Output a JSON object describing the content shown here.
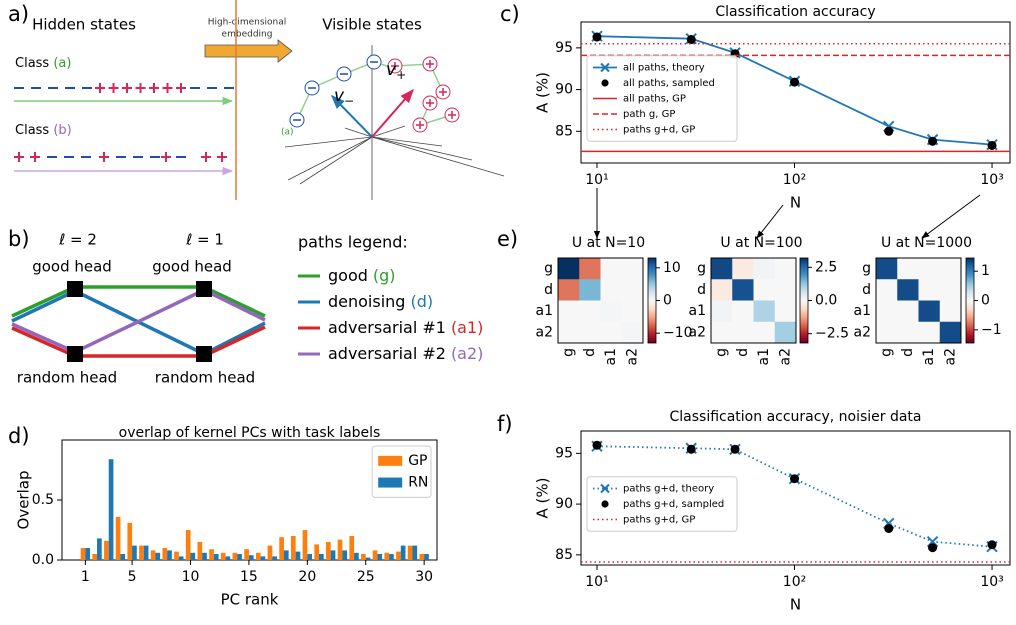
{
  "diagram_a": {
    "label": "a)",
    "hidden_title": "Hidden states",
    "embedding": [
      "High-dimensional",
      "embedding"
    ],
    "visible_title": "Visible states",
    "class_a": {
      "text": "Class",
      "tag": "(a)"
    },
    "class_b": {
      "text": "Class",
      "tag": "(b)"
    },
    "v_minus": {
      "symbol": "v",
      "sub": "−"
    },
    "v_plus": {
      "symbol": "v",
      "sub": "+"
    },
    "cluster_tag": "(a)"
  },
  "diagram_b": {
    "label": "b)",
    "layers": [
      "ℓ = 2",
      "ℓ = 1"
    ],
    "top_nodes": [
      "good head",
      "good head"
    ],
    "bottom_nodes": [
      "random head",
      "random head"
    ],
    "legend_title": "paths legend:",
    "paths": [
      {
        "name": "good",
        "tag": "(g)",
        "color": "#2ca02c"
      },
      {
        "name": "denoising",
        "tag": "(d)",
        "color": "#1f77b4"
      },
      {
        "name": "adversarial #1",
        "tag": "(a1)",
        "color": "#d62728"
      },
      {
        "name": "adversarial #2",
        "tag": "(a2)",
        "color": "#9467bd"
      }
    ]
  },
  "chart_data": [
    {
      "type": "line",
      "label": "c)",
      "title": "Classification accuracy",
      "xlabel": "N",
      "ylabel": "A (%)",
      "log_x": true,
      "x": [
        10,
        30,
        50,
        100,
        300,
        500,
        1000
      ],
      "xlim": [
        8.3,
        1233
      ],
      "xticks": [
        {
          "value": 10,
          "label": "10¹"
        },
        {
          "value": 100,
          "label": "10²"
        },
        {
          "value": 1000,
          "label": "10³"
        }
      ],
      "ylim": [
        81.2,
        98.1
      ],
      "yticks": [
        85,
        90,
        95
      ],
      "legend": "center left",
      "series": [
        {
          "name": "all paths, theory",
          "color": "#1f77b4",
          "marker": "x",
          "linestyle": "solid",
          "values": [
            96.4,
            96.1,
            94.4,
            91.0,
            85.6,
            84.0,
            83.4
          ]
        },
        {
          "name": "all paths, sampled",
          "color": "#000000",
          "marker": "o",
          "linestyle": "none",
          "values": [
            96.3,
            96.0,
            94.3,
            90.9,
            85.0,
            83.8,
            83.3
          ]
        }
      ],
      "hlines": [
        {
          "name": "all paths, GP",
          "color": "#d62728",
          "linestyle": "solid",
          "value": 82.6
        },
        {
          "name": "path g, GP",
          "color": "#d62728",
          "linestyle": "dashed",
          "value": 94.1
        },
        {
          "name": "paths g+d, GP",
          "color": "#d62728",
          "linestyle": "dotted",
          "value": 95.5
        }
      ]
    },
    {
      "type": "bar",
      "label": "d)",
      "title": "overlap of kernel PCs with task labels",
      "xlabel": "PC rank",
      "ylabel": "Overlap",
      "x": [
        1,
        2,
        3,
        4,
        5,
        6,
        7,
        8,
        9,
        10,
        11,
        12,
        13,
        14,
        15,
        16,
        17,
        18,
        19,
        20,
        21,
        22,
        23,
        24,
        25,
        26,
        27,
        28,
        29,
        30
      ],
      "xlim": [
        -1,
        31.1
      ],
      "xticks": [
        1,
        5,
        10,
        15,
        20,
        25,
        30
      ],
      "ylim": [
        0,
        1.0
      ],
      "yticks": [
        {
          "value": 0,
          "label": "0.0"
        },
        0.5
      ],
      "legend": "upper right",
      "series": [
        {
          "name": "GP",
          "color": "#ff7f0e",
          "values": [
            0.1,
            0.05,
            0.16,
            0.36,
            0.31,
            0.12,
            0.08,
            0.1,
            0.07,
            0.25,
            0.15,
            0.09,
            0.06,
            0.06,
            0.09,
            0.06,
            0.12,
            0.19,
            0.2,
            0.25,
            0.13,
            0.15,
            0.17,
            0.2,
            0.05,
            0.08,
            0.06,
            0.07,
            0.12,
            0.05
          ]
        },
        {
          "name": "RN",
          "color": "#1f77b4",
          "values": [
            0.1,
            0.18,
            0.84,
            0.05,
            0.12,
            0.12,
            0.06,
            0.08,
            0.03,
            0.06,
            0.06,
            0.05,
            0.03,
            0.05,
            0.04,
            0.03,
            0.03,
            0.08,
            0.07,
            0.05,
            0.05,
            0.08,
            0.08,
            0.06,
            0.02,
            0.05,
            0.05,
            0.12,
            0.12,
            0.05
          ]
        }
      ]
    },
    {
      "type": "heatmap",
      "label": "e)",
      "title": "U at N=10",
      "rows": [
        "g",
        "d",
        "a1",
        "a2"
      ],
      "cols": [
        "g",
        "d",
        "a1",
        "a2"
      ],
      "label_colors": [
        "#2ca02c",
        "#1f77b4",
        "#d62728",
        "#9467bd"
      ],
      "colormap": "RdBu",
      "values": [
        [
          13,
          -7,
          0,
          0
        ],
        [
          -7,
          6,
          0,
          0
        ],
        [
          0,
          0,
          0.3,
          0
        ],
        [
          0,
          0,
          0,
          0.3
        ]
      ],
      "vlim": [
        -13,
        13
      ],
      "cticks": [
        {
          "value": -10,
          "label": "−10"
        },
        0,
        10
      ]
    },
    {
      "type": "heatmap",
      "title": "U at N=100",
      "rows": [
        "g",
        "d",
        "a1",
        "a2"
      ],
      "cols": [
        "g",
        "d",
        "a1",
        "a2"
      ],
      "label_colors": [
        "#2ca02c",
        "#1f77b4",
        "#d62728",
        "#9467bd"
      ],
      "colormap": "RdBu",
      "values": [
        [
          2.9,
          -0.3,
          0.1,
          0
        ],
        [
          -0.3,
          2.8,
          0,
          0
        ],
        [
          0.1,
          0,
          1.0,
          0
        ],
        [
          0,
          0,
          0,
          1.1
        ]
      ],
      "vlim": [
        -3.2,
        3.2
      ],
      "cticks": [
        {
          "value": -2.5,
          "label": "−2.5"
        },
        {
          "value": 0,
          "label": "0.0"
        },
        2.5
      ]
    },
    {
      "type": "heatmap",
      "title": "U at N=1000",
      "rows": [
        "g",
        "d",
        "a1",
        "a2"
      ],
      "cols": [
        "g",
        "d",
        "a1",
        "a2"
      ],
      "label_colors": [
        "#2ca02c",
        "#1f77b4",
        "#d62728",
        "#9467bd"
      ],
      "colormap": "RdBu",
      "values": [
        [
          1.3,
          0,
          0,
          0
        ],
        [
          0,
          1.3,
          0,
          0
        ],
        [
          0,
          0,
          1.3,
          0
        ],
        [
          0,
          0,
          0,
          1.3
        ]
      ],
      "vlim": [
        -1.45,
        1.45
      ],
      "cticks": [
        {
          "value": -1,
          "label": "−1"
        },
        0,
        1
      ]
    },
    {
      "type": "line",
      "label": "f)",
      "title": "Classification accuracy, noisier data",
      "xlabel": "N",
      "ylabel": "A (%)",
      "log_x": true,
      "x": [
        10,
        30,
        50,
        100,
        300,
        500,
        1000
      ],
      "xlim": [
        8.3,
        1233
      ],
      "xticks": [
        {
          "value": 10,
          "label": "10¹"
        },
        {
          "value": 100,
          "label": "10²"
        },
        {
          "value": 1000,
          "label": "10³"
        }
      ],
      "ylim": [
        84.0,
        97.2
      ],
      "yticks": [
        85,
        90,
        95
      ],
      "legend": "center left",
      "series": [
        {
          "name": "paths g+d, theory",
          "color": "#1f77b4",
          "marker": "x",
          "linestyle": "dotted",
          "values": [
            95.7,
            95.5,
            95.4,
            92.5,
            88.1,
            86.3,
            85.8
          ]
        },
        {
          "name": "paths g+d, sampled",
          "color": "#000000",
          "marker": "o",
          "linestyle": "none",
          "values": [
            95.8,
            95.4,
            95.4,
            92.5,
            87.6,
            85.7,
            86.0
          ]
        }
      ],
      "hlines": [
        {
          "name": "paths g+d, GP",
          "color": "#d62728",
          "linestyle": "dotted",
          "value": 84.3
        }
      ]
    }
  ]
}
